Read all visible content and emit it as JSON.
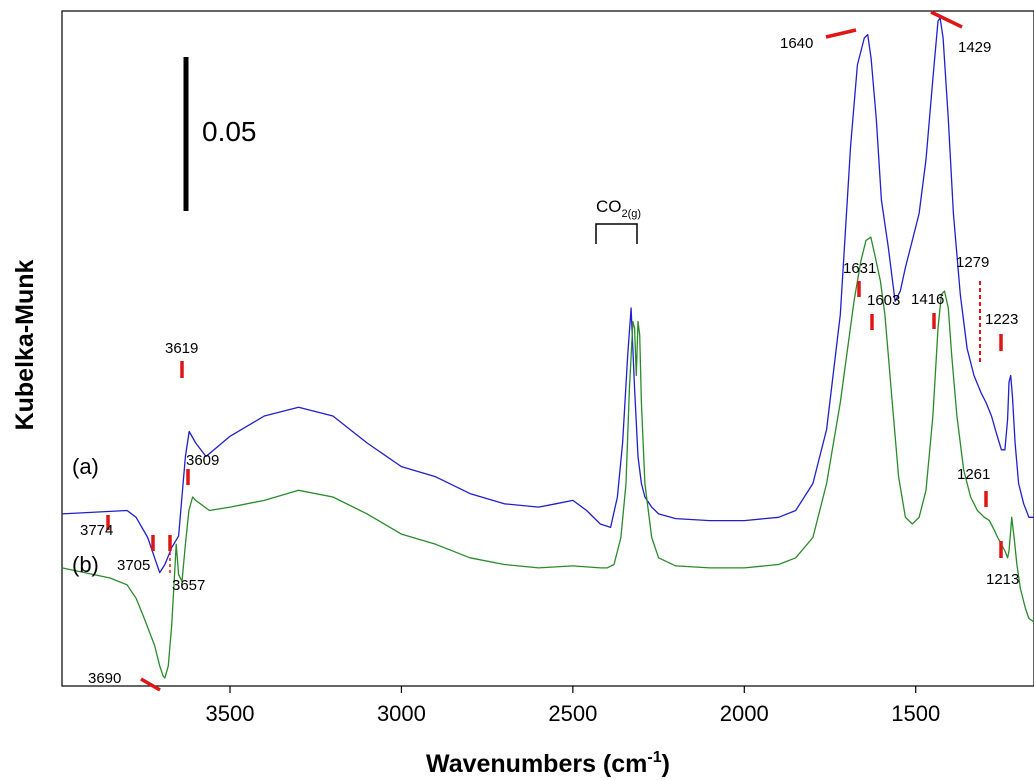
{
  "chart_data": {
    "type": "line",
    "title": "",
    "xlabel": "Wavenumbers (cm-1)",
    "xlabel_parts": {
      "main": "Wavenumbers (cm",
      "sup": "-1",
      "end": ")"
    },
    "ylabel": "Kubelka-Munk",
    "x_reversed": true,
    "xlim": [
      3990,
      1155
    ],
    "x_ticks": [
      3500,
      3000,
      2500,
      2000,
      1500
    ],
    "x_tick_labels": [
      "3500",
      "3000",
      "2500",
      "2000",
      "1500"
    ],
    "ylim": [
      0,
      1
    ],
    "scale_bar": {
      "label": "0.05"
    },
    "gas_label": {
      "main": "CO",
      "sub": "2(g)"
    },
    "series": [
      {
        "name": "(a)",
        "color": "#1f1fcc",
        "x": [
          3990,
          3800,
          3774,
          3740,
          3720,
          3705,
          3690,
          3670,
          3650,
          3630,
          3619,
          3600,
          3570,
          3500,
          3400,
          3300,
          3200,
          3100,
          3000,
          2900,
          2800,
          2700,
          2600,
          2550,
          2500,
          2460,
          2420,
          2390,
          2370,
          2355,
          2340,
          2330,
          2320,
          2310,
          2300,
          2290,
          2270,
          2250,
          2200,
          2100,
          2000,
          1900,
          1850,
          1800,
          1760,
          1720,
          1690,
          1670,
          1650,
          1640,
          1630,
          1615,
          1600,
          1580,
          1560,
          1545,
          1530,
          1510,
          1490,
          1470,
          1450,
          1435,
          1429,
          1420,
          1405,
          1390,
          1370,
          1350,
          1330,
          1310,
          1295,
          1279,
          1265,
          1250,
          1240,
          1232,
          1228,
          1223,
          1218,
          1210,
          1200,
          1185,
          1170,
          1155
        ],
        "y": [
          0.255,
          0.26,
          0.25,
          0.22,
          0.19,
          0.168,
          0.18,
          0.205,
          0.222,
          0.34,
          0.377,
          0.36,
          0.34,
          0.37,
          0.4,
          0.413,
          0.4,
          0.36,
          0.325,
          0.31,
          0.285,
          0.27,
          0.265,
          0.27,
          0.275,
          0.26,
          0.24,
          0.235,
          0.28,
          0.36,
          0.49,
          0.56,
          0.44,
          0.34,
          0.3,
          0.28,
          0.265,
          0.255,
          0.248,
          0.245,
          0.245,
          0.25,
          0.26,
          0.3,
          0.38,
          0.55,
          0.8,
          0.92,
          0.96,
          0.965,
          0.93,
          0.84,
          0.72,
          0.65,
          0.57,
          0.585,
          0.62,
          0.66,
          0.7,
          0.78,
          0.9,
          0.985,
          0.99,
          0.96,
          0.84,
          0.7,
          0.58,
          0.5,
          0.46,
          0.435,
          0.42,
          0.4,
          0.375,
          0.35,
          0.35,
          0.395,
          0.45,
          0.46,
          0.43,
          0.36,
          0.3,
          0.27,
          0.25,
          0.25
        ]
      },
      {
        "name": "(b)",
        "color": "#2a8a2a",
        "x": [
          3990,
          3850,
          3800,
          3774,
          3750,
          3720,
          3705,
          3695,
          3690,
          3680,
          3670,
          3660,
          3657,
          3650,
          3640,
          3630,
          3620,
          3609,
          3600,
          3560,
          3500,
          3400,
          3300,
          3200,
          3100,
          3000,
          2900,
          2800,
          2700,
          2600,
          2500,
          2420,
          2400,
          2380,
          2360,
          2345,
          2335,
          2325,
          2320,
          2315,
          2310,
          2305,
          2300,
          2290,
          2270,
          2250,
          2200,
          2100,
          2000,
          1900,
          1850,
          1800,
          1760,
          1720,
          1680,
          1660,
          1645,
          1631,
          1620,
          1603,
          1590,
          1570,
          1550,
          1530,
          1510,
          1490,
          1470,
          1450,
          1435,
          1425,
          1416,
          1405,
          1395,
          1380,
          1360,
          1340,
          1320,
          1300,
          1285,
          1270,
          1261,
          1250,
          1240,
          1232,
          1228,
          1223,
          1220,
          1213,
          1205,
          1195,
          1180,
          1170,
          1155
        ],
        "y": [
          0.175,
          0.16,
          0.15,
          0.13,
          0.1,
          0.06,
          0.03,
          0.015,
          0.012,
          0.03,
          0.09,
          0.18,
          0.21,
          0.165,
          0.155,
          0.21,
          0.26,
          0.28,
          0.275,
          0.26,
          0.265,
          0.275,
          0.29,
          0.28,
          0.255,
          0.225,
          0.21,
          0.19,
          0.18,
          0.175,
          0.178,
          0.175,
          0.175,
          0.18,
          0.22,
          0.3,
          0.44,
          0.54,
          0.53,
          0.46,
          0.54,
          0.52,
          0.42,
          0.3,
          0.22,
          0.19,
          0.178,
          0.175,
          0.175,
          0.18,
          0.19,
          0.22,
          0.3,
          0.42,
          0.57,
          0.63,
          0.66,
          0.665,
          0.64,
          0.6,
          0.55,
          0.43,
          0.31,
          0.25,
          0.24,
          0.25,
          0.29,
          0.4,
          0.53,
          0.58,
          0.585,
          0.56,
          0.49,
          0.4,
          0.32,
          0.28,
          0.26,
          0.25,
          0.245,
          0.23,
          0.22,
          0.21,
          0.2,
          0.19,
          0.2,
          0.23,
          0.25,
          0.22,
          0.18,
          0.145,
          0.115,
          0.1,
          0.095
        ]
      }
    ],
    "annotations": [
      {
        "text": "3774"
      },
      {
        "text": "3705"
      },
      {
        "text": "3690"
      },
      {
        "text": "3657"
      },
      {
        "text": "3619"
      },
      {
        "text": "3609"
      },
      {
        "text": "1640"
      },
      {
        "text": "1429"
      },
      {
        "text": "1631"
      },
      {
        "text": "1603"
      },
      {
        "text": "1416"
      },
      {
        "text": "1279"
      },
      {
        "text": "1223"
      },
      {
        "text": "1261"
      },
      {
        "text": "1213"
      }
    ]
  }
}
